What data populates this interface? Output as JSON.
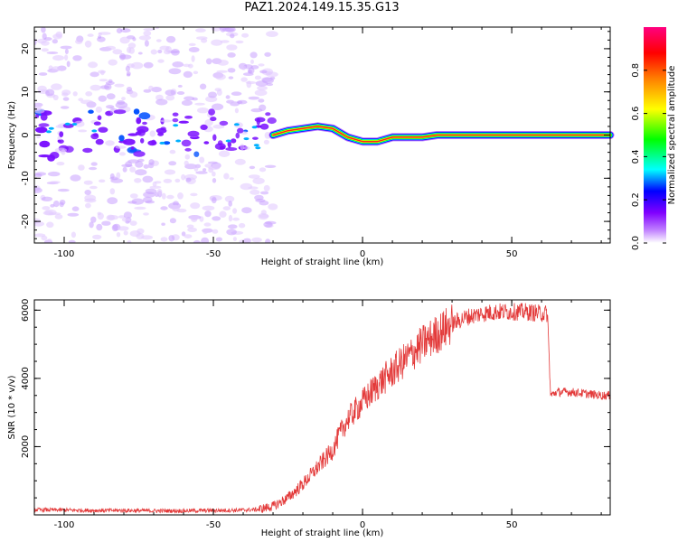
{
  "title": "PAZ1.2024.149.15.35.G13",
  "chart_data": [
    {
      "type": "heatmap",
      "xlabel": "Height of straight line (km)",
      "ylabel": "Frequency (Hz)",
      "xlim": [
        -110,
        83
      ],
      "ylim": [
        -25,
        25
      ],
      "xticks": [
        -100,
        -50,
        0,
        50
      ],
      "yticks": [
        -20,
        -10,
        0,
        10,
        20
      ],
      "colorbar": {
        "label": "Normalized spectral amplitude",
        "range": [
          0,
          1
        ],
        "ticks": [
          "0.0",
          "0.2",
          "0.4",
          "0.6",
          "0.8"
        ],
        "colormap": [
          "#ffffff",
          "#8000ff",
          "#0000ff",
          "#00ffff",
          "#00ff00",
          "#ffff00",
          "#ff8000",
          "#ff0000",
          "#ff0080"
        ]
      },
      "frequency_track": {
        "x": [
          -30,
          -25,
          -20,
          -15,
          -10,
          -5,
          0,
          5,
          10,
          15,
          20,
          25,
          30,
          40,
          50,
          60,
          70,
          83
        ],
        "freq": [
          0,
          1,
          1.5,
          2,
          1.5,
          -0.5,
          -1.5,
          -1.5,
          -0.5,
          -0.5,
          -0.5,
          0,
          0,
          0,
          0,
          0,
          0,
          0
        ]
      },
      "noise_region_x": [
        -110,
        -30
      ]
    },
    {
      "type": "line",
      "xlabel": "Height of straight line (km)",
      "ylabel": "SNR (10 * v/v)",
      "xlim": [
        -110,
        83
      ],
      "ylim": [
        0,
        6300
      ],
      "xticks": [
        -100,
        -50,
        0,
        50
      ],
      "yticks": [
        2000,
        4000,
        6000
      ],
      "color": "#e33a3a",
      "x": [
        -110,
        -100,
        -90,
        -80,
        -70,
        -60,
        -50,
        -40,
        -35,
        -30,
        -25,
        -20,
        -15,
        -10,
        -8,
        -5,
        0,
        5,
        10,
        15,
        20,
        25,
        30,
        35,
        40,
        45,
        50,
        55,
        60,
        62,
        63,
        65,
        70,
        75,
        80,
        83
      ],
      "y": [
        150,
        140,
        130,
        130,
        120,
        120,
        130,
        140,
        160,
        250,
        500,
        900,
        1400,
        1900,
        2300,
        2800,
        3300,
        3800,
        4200,
        4600,
        5000,
        5300,
        5600,
        5800,
        5900,
        5950,
        5950,
        5950,
        5900,
        5900,
        3500,
        3600,
        3600,
        3550,
        3500,
        3500
      ]
    }
  ]
}
